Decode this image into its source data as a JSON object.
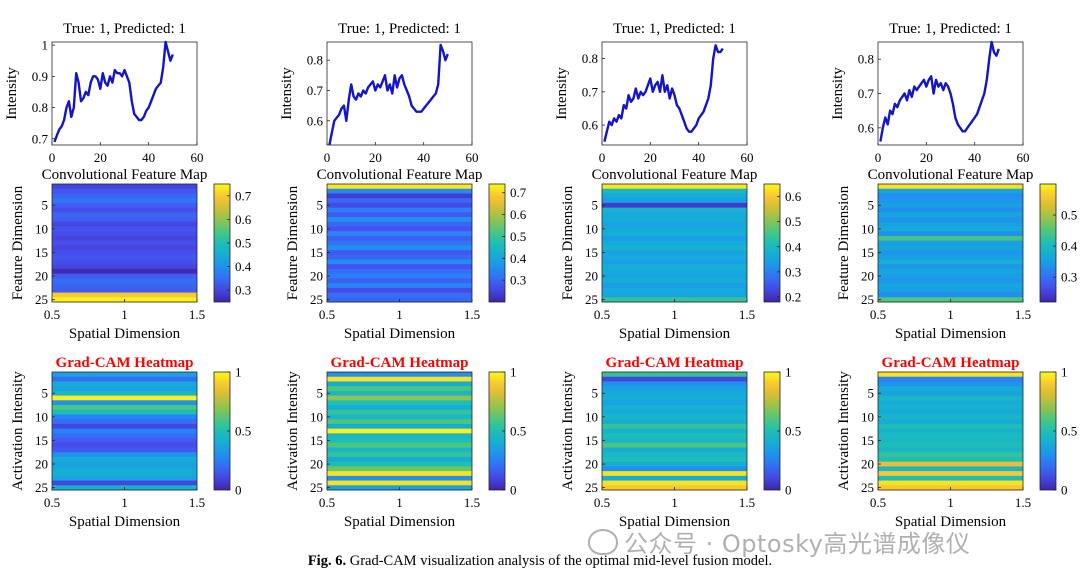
{
  "caption": {
    "label": "Fig. 6.",
    "text": " Grad-CAM visualization analysis of the optimal mid-level fusion model."
  },
  "watermark": {
    "icon": "wechat-icon",
    "text": "公众号 · Optosky高光谱成像仪"
  },
  "colors": {
    "line": "#1414c8",
    "gradcam_title": "#ff0000",
    "parula_low": "#3e26a8",
    "parula_high": "#f9fb15"
  },
  "chart_data": [
    {
      "panel": 1,
      "type": "line",
      "title": "True: 1, Predicted: 1",
      "xlabel": "",
      "ylabel": "Intensity",
      "xlim": [
        0,
        60
      ],
      "ylim": [
        0.68,
        1.01
      ],
      "xticks": [
        0,
        20,
        40,
        60
      ],
      "yticks": [
        0.7,
        0.8,
        0.9,
        1
      ],
      "ytick_labels": [
        "0.7",
        "0.8",
        "0.9",
        "1"
      ],
      "x": [
        1,
        2,
        3,
        4,
        5,
        6,
        7,
        8,
        9,
        10,
        11,
        12,
        13,
        14,
        15,
        16,
        17,
        18,
        19,
        20,
        21,
        22,
        23,
        24,
        25,
        26,
        27,
        28,
        29,
        30,
        31,
        32,
        33,
        34,
        35,
        36,
        37,
        38,
        39,
        40,
        41,
        42,
        43,
        44,
        45,
        46,
        47,
        48,
        49,
        50
      ],
      "y": [
        0.69,
        0.71,
        0.73,
        0.74,
        0.76,
        0.8,
        0.82,
        0.77,
        0.8,
        0.91,
        0.88,
        0.82,
        0.83,
        0.85,
        0.84,
        0.88,
        0.9,
        0.9,
        0.89,
        0.86,
        0.91,
        0.88,
        0.87,
        0.9,
        0.88,
        0.92,
        0.91,
        0.91,
        0.9,
        0.92,
        0.9,
        0.88,
        0.82,
        0.78,
        0.77,
        0.76,
        0.76,
        0.77,
        0.79,
        0.8,
        0.82,
        0.84,
        0.86,
        0.87,
        0.88,
        0.93,
        1.01,
        0.98,
        0.95,
        0.97
      ]
    },
    {
      "panel": 2,
      "type": "line",
      "title": "True: 1, Predicted: 1",
      "xlabel": "",
      "ylabel": "Intensity",
      "xlim": [
        0,
        60
      ],
      "ylim": [
        0.52,
        0.86
      ],
      "xticks": [
        0,
        20,
        40,
        60
      ],
      "yticks": [
        0.6,
        0.7,
        0.8
      ],
      "ytick_labels": [
        "0.6",
        "0.7",
        "0.8"
      ],
      "x": [
        1,
        2,
        3,
        4,
        5,
        6,
        7,
        8,
        9,
        10,
        11,
        12,
        13,
        14,
        15,
        16,
        17,
        18,
        19,
        20,
        21,
        22,
        23,
        24,
        25,
        26,
        27,
        28,
        29,
        30,
        31,
        32,
        33,
        34,
        35,
        36,
        37,
        38,
        39,
        40,
        41,
        42,
        43,
        44,
        45,
        46,
        47,
        48,
        49,
        50
      ],
      "y": [
        0.52,
        0.56,
        0.6,
        0.61,
        0.62,
        0.64,
        0.65,
        0.6,
        0.67,
        0.72,
        0.68,
        0.67,
        0.69,
        0.68,
        0.7,
        0.69,
        0.71,
        0.72,
        0.73,
        0.7,
        0.72,
        0.71,
        0.73,
        0.75,
        0.7,
        0.72,
        0.69,
        0.75,
        0.71,
        0.74,
        0.75,
        0.72,
        0.7,
        0.68,
        0.65,
        0.64,
        0.63,
        0.63,
        0.63,
        0.64,
        0.65,
        0.66,
        0.67,
        0.68,
        0.69,
        0.72,
        0.85,
        0.83,
        0.8,
        0.82
      ]
    },
    {
      "panel": 3,
      "type": "line",
      "title": "True: 1, Predicted: 1",
      "xlabel": "",
      "ylabel": "Intensity",
      "xlim": [
        0,
        60
      ],
      "ylim": [
        0.54,
        0.85
      ],
      "xticks": [
        0,
        20,
        40,
        60
      ],
      "yticks": [
        0.6,
        0.7,
        0.8
      ],
      "ytick_labels": [
        "0.6",
        "0.7",
        "0.8"
      ],
      "x": [
        1,
        2,
        3,
        4,
        5,
        6,
        7,
        8,
        9,
        10,
        11,
        12,
        13,
        14,
        15,
        16,
        17,
        18,
        19,
        20,
        21,
        22,
        23,
        24,
        25,
        26,
        27,
        28,
        29,
        30,
        31,
        32,
        33,
        34,
        35,
        36,
        37,
        38,
        39,
        40,
        41,
        42,
        43,
        44,
        45,
        46,
        47,
        48,
        49,
        50
      ],
      "y": [
        0.55,
        0.58,
        0.61,
        0.6,
        0.62,
        0.61,
        0.63,
        0.62,
        0.66,
        0.65,
        0.69,
        0.67,
        0.68,
        0.71,
        0.68,
        0.7,
        0.69,
        0.7,
        0.72,
        0.74,
        0.7,
        0.72,
        0.73,
        0.7,
        0.75,
        0.7,
        0.72,
        0.68,
        0.71,
        0.69,
        0.66,
        0.65,
        0.63,
        0.61,
        0.59,
        0.58,
        0.58,
        0.59,
        0.6,
        0.62,
        0.63,
        0.64,
        0.66,
        0.68,
        0.72,
        0.8,
        0.84,
        0.82,
        0.82,
        0.83
      ]
    },
    {
      "panel": 4,
      "type": "line",
      "title": "True: 1, Predicted: 1",
      "xlabel": "",
      "ylabel": "Intensity",
      "xlim": [
        0,
        60
      ],
      "ylim": [
        0.55,
        0.85
      ],
      "xticks": [
        0,
        20,
        40,
        60
      ],
      "yticks": [
        0.6,
        0.7,
        0.8
      ],
      "ytick_labels": [
        "0.6",
        "0.7",
        "0.8"
      ],
      "x": [
        1,
        2,
        3,
        4,
        5,
        6,
        7,
        8,
        9,
        10,
        11,
        12,
        13,
        14,
        15,
        16,
        17,
        18,
        19,
        20,
        21,
        22,
        23,
        24,
        25,
        26,
        27,
        28,
        29,
        30,
        31,
        32,
        33,
        34,
        35,
        36,
        37,
        38,
        39,
        40,
        41,
        42,
        43,
        44,
        45,
        46,
        47,
        48,
        49,
        50
      ],
      "y": [
        0.56,
        0.6,
        0.63,
        0.61,
        0.65,
        0.64,
        0.67,
        0.66,
        0.68,
        0.69,
        0.7,
        0.68,
        0.71,
        0.69,
        0.72,
        0.71,
        0.72,
        0.73,
        0.74,
        0.72,
        0.74,
        0.75,
        0.7,
        0.74,
        0.72,
        0.73,
        0.71,
        0.73,
        0.72,
        0.7,
        0.67,
        0.63,
        0.61,
        0.6,
        0.59,
        0.59,
        0.6,
        0.61,
        0.62,
        0.63,
        0.64,
        0.66,
        0.68,
        0.7,
        0.74,
        0.8,
        0.85,
        0.82,
        0.81,
        0.83
      ]
    },
    {
      "panel": 5,
      "type": "heatmap",
      "title": "Convolutional Feature Map",
      "xlabel": "Spatial Dimension",
      "ylabel": "Feature Dimension",
      "xlim": [
        0.5,
        1.5
      ],
      "xticks": [
        0.5,
        1,
        1.5
      ],
      "xtick_labels": [
        "0.5",
        "1",
        "1.5"
      ],
      "yticks": [
        5,
        10,
        15,
        20,
        25
      ],
      "clim": [
        0.25,
        0.75
      ],
      "cticks": [
        0.3,
        0.4,
        0.5,
        0.6,
        0.7
      ],
      "ctick_labels": [
        "0.3",
        "0.4",
        "0.5",
        "0.6",
        "0.7"
      ],
      "rows": [
        0.3,
        0.32,
        0.34,
        0.36,
        0.33,
        0.31,
        0.34,
        0.33,
        0.3,
        0.32,
        0.31,
        0.3,
        0.31,
        0.3,
        0.31,
        0.32,
        0.31,
        0.3,
        0.26,
        0.33,
        0.35,
        0.34,
        0.33,
        0.7,
        0.74
      ]
    },
    {
      "panel": 6,
      "type": "heatmap",
      "title": "Convolutional Feature Map",
      "xlabel": "Spatial Dimension",
      "ylabel": "Feature Dimension",
      "xlim": [
        0.5,
        1.5
      ],
      "xticks": [
        0.5,
        1,
        1.5
      ],
      "xtick_labels": [
        "0.5",
        "1",
        "1.5"
      ],
      "yticks": [
        5,
        10,
        15,
        20,
        25
      ],
      "clim": [
        0.2,
        0.74
      ],
      "cticks": [
        0.3,
        0.4,
        0.5,
        0.6,
        0.7
      ],
      "ctick_labels": [
        "0.3",
        "0.4",
        "0.5",
        "0.6",
        "0.7"
      ],
      "rows": [
        0.72,
        0.35,
        0.24,
        0.3,
        0.26,
        0.33,
        0.28,
        0.36,
        0.3,
        0.27,
        0.34,
        0.29,
        0.32,
        0.36,
        0.28,
        0.3,
        0.35,
        0.27,
        0.31,
        0.33,
        0.29,
        0.34,
        0.26,
        0.31,
        0.3
      ]
    },
    {
      "panel": 7,
      "type": "heatmap",
      "title": "Convolutional Feature Map",
      "xlabel": "Spatial Dimension",
      "ylabel": "Feature Dimension",
      "xlim": [
        0.5,
        1.5
      ],
      "xticks": [
        0.5,
        1,
        1.5
      ],
      "xtick_labels": [
        "0.5",
        "1",
        "1.5"
      ],
      "yticks": [
        5,
        10,
        15,
        20,
        25
      ],
      "clim": [
        0.18,
        0.65
      ],
      "cticks": [
        0.2,
        0.3,
        0.4,
        0.5,
        0.6
      ],
      "ctick_labels": [
        "0.2",
        "0.3",
        "0.4",
        "0.5",
        "0.6"
      ],
      "rows": [
        0.63,
        0.4,
        0.36,
        0.34,
        0.21,
        0.38,
        0.36,
        0.37,
        0.35,
        0.36,
        0.37,
        0.34,
        0.36,
        0.38,
        0.35,
        0.36,
        0.34,
        0.37,
        0.36,
        0.35,
        0.37,
        0.34,
        0.36,
        0.35,
        0.44
      ]
    },
    {
      "panel": 8,
      "type": "heatmap",
      "title": "Convolutional Feature Map",
      "xlabel": "Spatial Dimension",
      "ylabel": "Feature Dimension",
      "xlim": [
        0.5,
        1.5
      ],
      "xticks": [
        0.5,
        1,
        1.5
      ],
      "xtick_labels": [
        "0.5",
        "1",
        "1.5"
      ],
      "yticks": [
        5,
        10,
        15,
        20,
        25
      ],
      "clim": [
        0.22,
        0.6
      ],
      "cticks": [
        0.3,
        0.4,
        0.5
      ],
      "ctick_labels": [
        "0.3",
        "0.4",
        "0.5"
      ],
      "rows": [
        0.58,
        0.36,
        0.33,
        0.34,
        0.35,
        0.33,
        0.36,
        0.34,
        0.35,
        0.37,
        0.33,
        0.44,
        0.35,
        0.36,
        0.34,
        0.35,
        0.37,
        0.34,
        0.36,
        0.35,
        0.34,
        0.36,
        0.35,
        0.33,
        0.45
      ]
    },
    {
      "panel": 9,
      "type": "heatmap",
      "title": "Grad-CAM Heatmap",
      "xlabel": "Spatial Dimension",
      "ylabel": "Activation Intensity",
      "xlim": [
        0.5,
        1.5
      ],
      "xticks": [
        0.5,
        1,
        1.5
      ],
      "xtick_labels": [
        "0.5",
        "1",
        "1.5"
      ],
      "yticks": [
        5,
        10,
        15,
        20,
        25
      ],
      "clim": [
        0,
        1
      ],
      "cticks": [
        0,
        0.5,
        1
      ],
      "ctick_labels": [
        "0",
        "0.5",
        "1"
      ],
      "rows": [
        0.35,
        0.2,
        0.4,
        0.35,
        0.45,
        0.98,
        0.3,
        0.6,
        0.5,
        0.25,
        0.2,
        0.1,
        0.25,
        0.2,
        0.15,
        0.12,
        0.15,
        0.3,
        0.4,
        0.35,
        0.38,
        0.4,
        0.35,
        0.1,
        0.42
      ]
    },
    {
      "panel": 10,
      "type": "heatmap",
      "title": "Grad-CAM Heatmap",
      "xlabel": "Spatial Dimension",
      "ylabel": "Activation Intensity",
      "xlim": [
        0.5,
        1.5
      ],
      "xticks": [
        0.5,
        1,
        1.5
      ],
      "xtick_labels": [
        "0.5",
        "1",
        "1.5"
      ],
      "yticks": [
        5,
        10,
        15,
        20,
        25
      ],
      "clim": [
        0,
        1
      ],
      "cticks": [
        0,
        0.5,
        1
      ],
      "ctick_labels": [
        "0",
        "0.5",
        "1"
      ],
      "rows": [
        0.3,
        0.95,
        0.4,
        0.6,
        0.45,
        0.7,
        0.5,
        0.4,
        0.55,
        0.45,
        0.6,
        0.4,
        0.98,
        0.45,
        0.5,
        0.6,
        0.45,
        0.55,
        0.4,
        0.5,
        0.65,
        0.95,
        0.3,
        0.95,
        0.35
      ]
    },
    {
      "panel": 11,
      "type": "heatmap",
      "title": "Grad-CAM Heatmap",
      "xlabel": "Spatial Dimension",
      "ylabel": "Activation Intensity",
      "xlim": [
        0.5,
        1.5
      ],
      "xticks": [
        0.5,
        1,
        1.5
      ],
      "xtick_labels": [
        "0.5",
        "1",
        "1.5"
      ],
      "yticks": [
        5,
        10,
        15,
        20,
        25
      ],
      "clim": [
        0,
        1
      ],
      "cticks": [
        0,
        0.5,
        1
      ],
      "ctick_labels": [
        "0",
        "0.5",
        "1"
      ],
      "rows": [
        0.55,
        0.1,
        0.3,
        0.35,
        0.38,
        0.4,
        0.36,
        0.42,
        0.38,
        0.45,
        0.4,
        0.55,
        0.42,
        0.5,
        0.45,
        0.6,
        0.4,
        0.45,
        0.5,
        0.4,
        0.3,
        0.95,
        0.4,
        0.95,
        0.9
      ]
    },
    {
      "panel": 12,
      "type": "heatmap",
      "title": "Grad-CAM Heatmap",
      "xlabel": "Spatial Dimension",
      "ylabel": "Activation Intensity",
      "xlim": [
        0.5,
        1.5
      ],
      "xticks": [
        0.5,
        1,
        1.5
      ],
      "xtick_labels": [
        "0.5",
        "1",
        "1.5"
      ],
      "yticks": [
        5,
        10,
        15,
        20,
        25
      ],
      "clim": [
        0,
        1
      ],
      "cticks": [
        0,
        0.5,
        1
      ],
      "ctick_labels": [
        "0",
        "0.5",
        "1"
      ],
      "rows": [
        0.95,
        0.25,
        0.3,
        0.4,
        0.35,
        0.45,
        0.4,
        0.42,
        0.38,
        0.45,
        0.4,
        0.5,
        0.42,
        0.48,
        0.45,
        0.5,
        0.44,
        0.55,
        0.5,
        0.85,
        0.45,
        0.9,
        0.5,
        0.95,
        0.9
      ]
    }
  ]
}
